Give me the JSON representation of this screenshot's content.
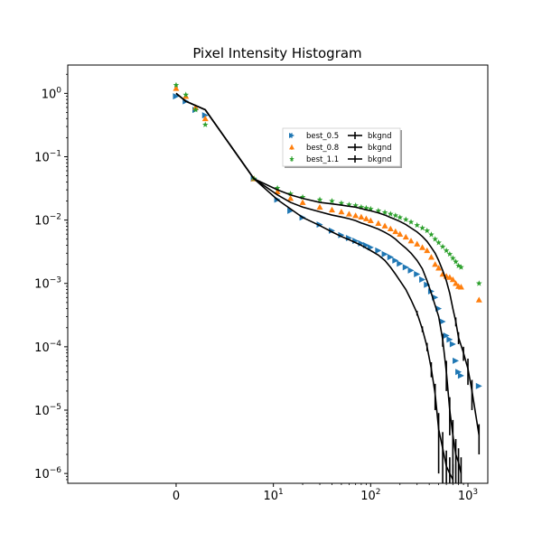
{
  "chart_data": {
    "type": "scatter",
    "title": "Pixel Intensity Histogram",
    "xlabel": "",
    "ylabel": "",
    "xscale": "symlog",
    "yscale": "log",
    "xlim": [
      -13,
      1600
    ],
    "ylim": [
      7e-07,
      2.8
    ],
    "grid": false,
    "legend_position": "upper-right",
    "x_ticks": [
      {
        "value": 0,
        "base": "0",
        "exp": ""
      },
      {
        "value": 10,
        "base": "10",
        "exp": "1"
      },
      {
        "value": 100,
        "base": "10",
        "exp": "2"
      },
      {
        "value": 1000,
        "base": "10",
        "exp": "3"
      }
    ],
    "y_ticks": [
      {
        "value": 1,
        "base": "10",
        "exp": "0"
      },
      {
        "value": 0.1,
        "base": "10",
        "exp": "−1"
      },
      {
        "value": 0.01,
        "base": "10",
        "exp": "−2"
      },
      {
        "value": 0.001,
        "base": "10",
        "exp": "−3"
      },
      {
        "value": 0.0001,
        "base": "10",
        "exp": "−4"
      },
      {
        "value": 1e-05,
        "base": "10",
        "exp": "−5"
      },
      {
        "value": 1e-06,
        "base": "10",
        "exp": "−6"
      }
    ],
    "series": [
      {
        "name": "best_0.5",
        "marker": "triangle-right",
        "color": "#1f77b4",
        "x": [
          0,
          1,
          2,
          3,
          8,
          11,
          15,
          20,
          30,
          40,
          50,
          60,
          70,
          80,
          90,
          100,
          120,
          140,
          160,
          180,
          200,
          230,
          260,
          300,
          340,
          380,
          420,
          460,
          500,
          550,
          600,
          650,
          700,
          750,
          800,
          850,
          1300
        ],
        "y": [
          0.9,
          0.75,
          0.55,
          0.45,
          0.045,
          0.021,
          0.014,
          0.011,
          0.0085,
          0.0068,
          0.0058,
          0.0052,
          0.0047,
          0.0043,
          0.004,
          0.0037,
          0.0033,
          0.0029,
          0.0026,
          0.0023,
          0.00205,
          0.0018,
          0.0016,
          0.0014,
          0.00115,
          0.00095,
          0.00075,
          0.0006,
          0.0004,
          0.00025,
          0.00015,
          0.00013,
          0.00011,
          6e-05,
          4e-05,
          3.5e-05,
          2.4e-05
        ]
      },
      {
        "name": "best_0.8",
        "marker": "triangle-up",
        "color": "#ff7f0e",
        "x": [
          0,
          1,
          2,
          3,
          8,
          11,
          15,
          20,
          30,
          40,
          50,
          60,
          70,
          80,
          90,
          100,
          120,
          140,
          160,
          180,
          200,
          230,
          260,
          300,
          340,
          380,
          420,
          460,
          500,
          550,
          600,
          650,
          700,
          750,
          800,
          850,
          1300
        ],
        "y": [
          1.2,
          0.9,
          0.6,
          0.4,
          0.045,
          0.028,
          0.022,
          0.019,
          0.016,
          0.0145,
          0.0135,
          0.0125,
          0.0118,
          0.0112,
          0.0105,
          0.0098,
          0.0089,
          0.0081,
          0.0073,
          0.0066,
          0.006,
          0.0054,
          0.0047,
          0.0042,
          0.0037,
          0.0033,
          0.0026,
          0.002,
          0.00175,
          0.0014,
          0.0013,
          0.00125,
          0.00115,
          0.001,
          0.0009,
          0.00088,
          0.00055
        ]
      },
      {
        "name": "best_1.1",
        "marker": "star",
        "color": "#2ca02c",
        "x": [
          0,
          1,
          2,
          3,
          8,
          11,
          15,
          20,
          30,
          40,
          50,
          60,
          70,
          80,
          90,
          100,
          120,
          140,
          160,
          180,
          200,
          230,
          260,
          300,
          340,
          380,
          420,
          460,
          500,
          550,
          600,
          650,
          700,
          750,
          800,
          850,
          1300
        ],
        "y": [
          1.35,
          0.95,
          0.55,
          0.32,
          0.045,
          0.032,
          0.026,
          0.023,
          0.021,
          0.02,
          0.0185,
          0.0175,
          0.017,
          0.016,
          0.0155,
          0.015,
          0.014,
          0.0132,
          0.0125,
          0.0118,
          0.011,
          0.0102,
          0.0093,
          0.0083,
          0.0075,
          0.0068,
          0.0059,
          0.005,
          0.0044,
          0.0038,
          0.0033,
          0.0029,
          0.0025,
          0.0022,
          0.0019,
          0.0018,
          0.001
        ]
      },
      {
        "name": "bkgnd",
        "marker": "line-errorbar",
        "color": "#000000",
        "band": "upper",
        "x": [
          0,
          1,
          3,
          8,
          11,
          15,
          20,
          30,
          40,
          50,
          60,
          70,
          80,
          90,
          100,
          120,
          140,
          160,
          180,
          200,
          230,
          260,
          300,
          340,
          380,
          420,
          460,
          500,
          550,
          600,
          650,
          700,
          750,
          800,
          900,
          1000,
          1100,
          1300
        ],
        "y": [
          1.0,
          0.75,
          0.55,
          0.045,
          0.03,
          0.025,
          0.022,
          0.019,
          0.018,
          0.0172,
          0.0165,
          0.016,
          0.0152,
          0.0145,
          0.014,
          0.013,
          0.012,
          0.011,
          0.0102,
          0.0095,
          0.0085,
          0.0075,
          0.0065,
          0.0055,
          0.0046,
          0.0037,
          0.003,
          0.0023,
          0.0016,
          0.0011,
          0.0007,
          0.0004,
          0.00025,
          0.00014,
          8e-05,
          4.5e-05,
          2e-05,
          4e-06
        ],
        "yerr": [
          0,
          0,
          0,
          0,
          0,
          0,
          0,
          0,
          0,
          0,
          0,
          0,
          0,
          0,
          0,
          0,
          0,
          0,
          0,
          0,
          0,
          0,
          0,
          0,
          0,
          0,
          0,
          0,
          0,
          0,
          0,
          0,
          4e-05,
          3e-05,
          2e-05,
          2e-05,
          1e-05,
          2e-06
        ]
      },
      {
        "name": "bkgnd",
        "marker": "line-errorbar",
        "color": "#000000",
        "band": "middle",
        "x": [
          0,
          1,
          3,
          8,
          11,
          15,
          20,
          30,
          40,
          50,
          60,
          70,
          80,
          90,
          100,
          120,
          140,
          160,
          180,
          200,
          230,
          260,
          300,
          340,
          380,
          420,
          460,
          500,
          550,
          600,
          650,
          700,
          750,
          800,
          850
        ],
        "y": [
          1.0,
          0.75,
          0.55,
          0.045,
          0.025,
          0.019,
          0.016,
          0.0135,
          0.012,
          0.0112,
          0.0105,
          0.0098,
          0.009,
          0.0085,
          0.008,
          0.0072,
          0.0064,
          0.0057,
          0.005,
          0.0043,
          0.0036,
          0.003,
          0.0023,
          0.0017,
          0.0011,
          0.0007,
          0.00045,
          0.0003,
          0.00013,
          4e-05,
          1e-05,
          4e-06,
          2e-06,
          1.5e-06,
          1e-06
        ],
        "yerr": [
          0,
          0,
          0,
          0,
          0,
          0,
          0,
          0,
          0,
          0,
          0,
          0,
          0,
          0,
          0,
          0,
          0,
          0,
          0,
          0,
          0,
          0,
          0,
          0,
          0,
          0,
          0,
          0,
          3e-05,
          2e-05,
          6e-06,
          3e-06,
          1.5e-06,
          1e-06,
          8e-07
        ]
      },
      {
        "name": "bkgnd",
        "marker": "line-errorbar",
        "color": "#000000",
        "band": "lower",
        "x": [
          0,
          1,
          3,
          8,
          11,
          15,
          20,
          30,
          40,
          50,
          60,
          70,
          80,
          90,
          100,
          120,
          140,
          160,
          180,
          200,
          230,
          260,
          300,
          340,
          380,
          420,
          460,
          500,
          550,
          600,
          650,
          700
        ],
        "y": [
          1.0,
          0.75,
          0.55,
          0.045,
          0.021,
          0.015,
          0.011,
          0.0082,
          0.0065,
          0.0055,
          0.0049,
          0.0044,
          0.004,
          0.0036,
          0.0033,
          0.0028,
          0.0023,
          0.0018,
          0.0014,
          0.0011,
          0.0008,
          0.00055,
          0.00034,
          0.00019,
          0.0001,
          4.5e-05,
          1.8e-05,
          5e-06,
          2.5e-06,
          1.3e-06,
          1e-06,
          8e-07
        ],
        "yerr": [
          0,
          0,
          0,
          0,
          0,
          0,
          0,
          0,
          0,
          0,
          0,
          0,
          0,
          0,
          0,
          0,
          0,
          0,
          0,
          0,
          0,
          0,
          3e-05,
          2e-05,
          1.5e-05,
          1.2e-05,
          8e-06,
          4e-06,
          2e-06,
          1e-06,
          8e-07,
          6e-07
        ]
      }
    ]
  }
}
